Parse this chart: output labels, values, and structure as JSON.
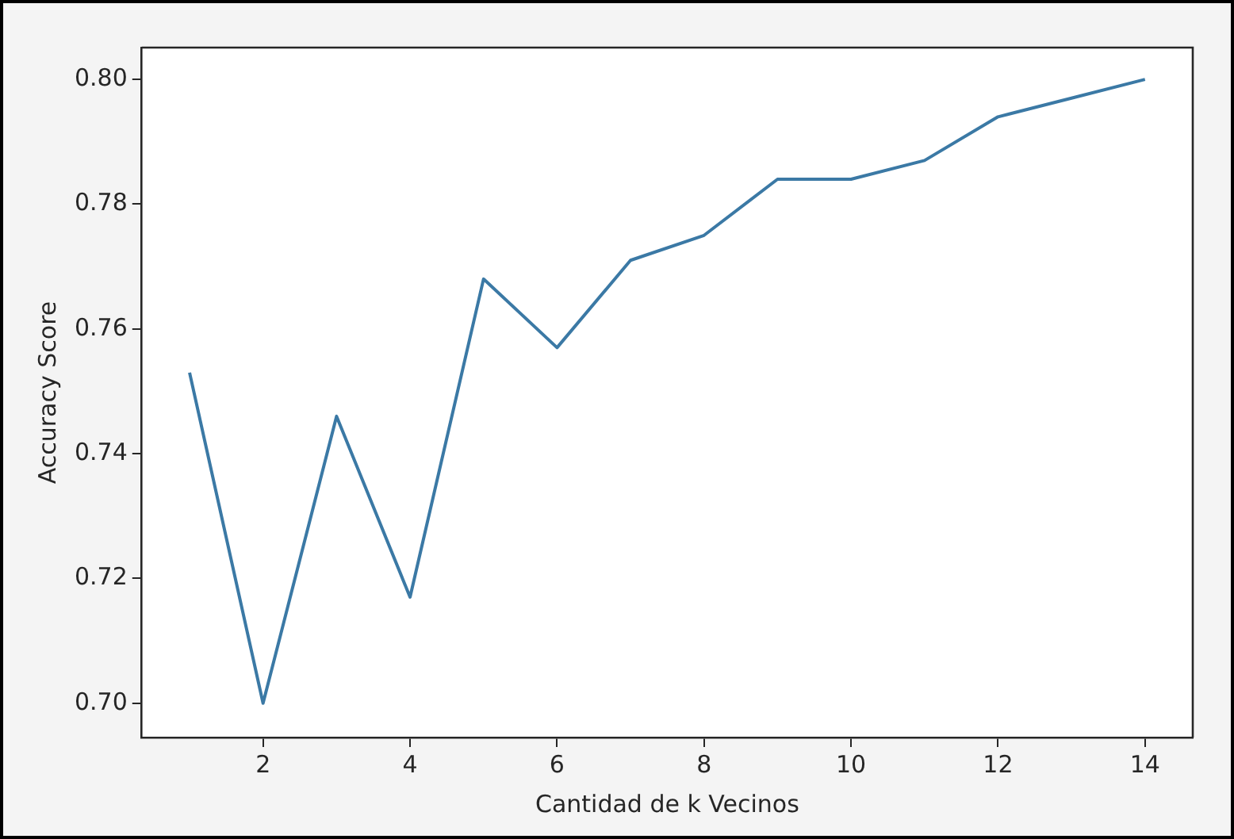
{
  "chart_data": {
    "type": "line",
    "xlabel": "Cantidad de k Vecinos",
    "ylabel": "Accuracy Score",
    "x": [
      1,
      2,
      3,
      4,
      5,
      6,
      7,
      8,
      9,
      10,
      11,
      12,
      13,
      14
    ],
    "series": [
      {
        "color": "#3b79a5",
        "values": [
          0.753,
          0.7,
          0.746,
          0.717,
          0.768,
          0.757,
          0.771,
          0.775,
          0.784,
          0.784,
          0.787,
          0.794,
          0.797,
          0.8
        ]
      }
    ],
    "xlim": [
      0.35,
      14.65
    ],
    "xticks": [
      2,
      4,
      6,
      8,
      10,
      12,
      14
    ],
    "ylim": [
      0.6945,
      0.8051
    ],
    "yticks": [
      {
        "value": 0.7,
        "label": "0.70"
      },
      0.72,
      0.74,
      0.76,
      0.78,
      {
        "value": 0.8,
        "label": "0.80"
      }
    ],
    "grid": false,
    "legend": false,
    "marker": "none",
    "line_style": "solid"
  }
}
